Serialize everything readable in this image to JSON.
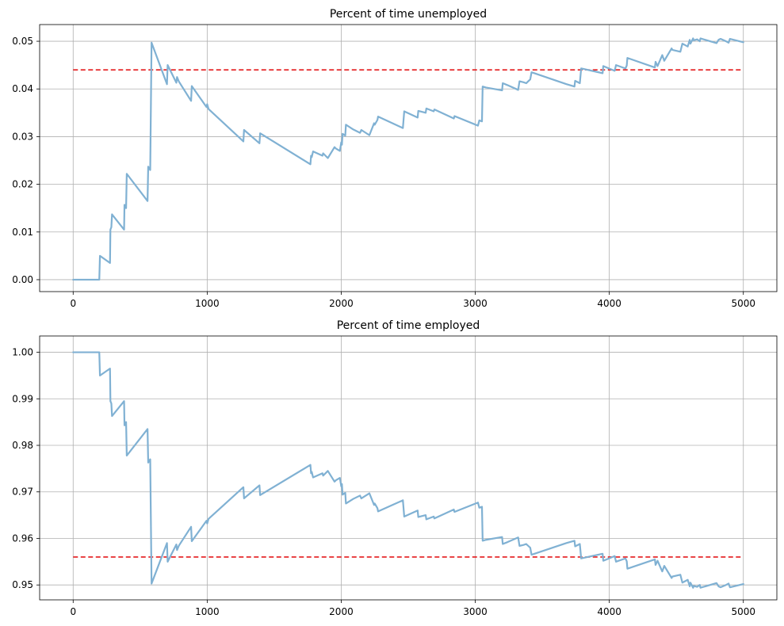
{
  "chart_data": [
    {
      "type": "line",
      "title": "Percent of time unemployed",
      "xlabel": "",
      "ylabel": "",
      "xlim": [
        -250,
        5250
      ],
      "ylim": [
        -0.0025,
        0.0535
      ],
      "xticks": [
        0,
        1000,
        2000,
        3000,
        4000,
        5000
      ],
      "xtick_labels": [
        "0",
        "1000",
        "2000",
        "3000",
        "4000",
        "5000"
      ],
      "yticks": [
        0.0,
        0.01,
        0.02,
        0.03,
        0.04,
        0.05
      ],
      "ytick_labels": [
        "0.00",
        "0.01",
        "0.02",
        "0.03",
        "0.04",
        "0.05"
      ],
      "grid": true,
      "reference_line": {
        "y": 0.044,
        "color": "#e41a1c",
        "style": "dashed"
      },
      "series_color": "#80b1d3",
      "series": [
        {
          "x": [
            0,
            195,
            200,
            275,
            278,
            285,
            290,
            380,
            383,
            395,
            400,
            555,
            560,
            575,
            585,
            700,
            705,
            770,
            775,
            785,
            790,
            880,
            885,
            995,
            1000,
            1010,
            1270,
            1275,
            1390,
            1395,
            1770,
            1775,
            1780,
            1790,
            1860,
            1865,
            1900,
            1950,
            1960,
            1990,
            2000,
            2005,
            2010,
            2030,
            2035,
            2090,
            2140,
            2150,
            2210,
            2245,
            2250,
            2270,
            2275,
            2460,
            2470,
            2570,
            2575,
            2630,
            2635,
            2690,
            2695,
            2840,
            2845,
            3020,
            3030,
            3050,
            3055,
            3080,
            3200,
            3205,
            3240,
            3320,
            3330,
            3360,
            3380,
            3395,
            3410,
            3420,
            3680,
            3740,
            3745,
            3780,
            3790,
            3950,
            3955,
            4040,
            4050,
            4120,
            4130,
            4135,
            4340,
            4345,
            4360,
            4395,
            4410,
            4465,
            4470,
            4530,
            4545,
            4585,
            4600,
            4605,
            4625,
            4630,
            4655,
            4675,
            4680,
            4800,
            4815,
            4830,
            4870,
            4890,
            4900,
            5000
          ],
          "y": [
            0.0,
            0.0,
            0.005,
            0.0035,
            0.0105,
            0.011,
            0.0137,
            0.0105,
            0.0157,
            0.015,
            0.0222,
            0.0165,
            0.0237,
            0.023,
            0.0497,
            0.041,
            0.045,
            0.0413,
            0.0425,
            0.0418,
            0.0415,
            0.0375,
            0.0406,
            0.0362,
            0.0368,
            0.0358,
            0.029,
            0.0314,
            0.0286,
            0.0307,
            0.0242,
            0.026,
            0.0257,
            0.0269,
            0.026,
            0.0265,
            0.0255,
            0.0278,
            0.0275,
            0.027,
            0.0288,
            0.0283,
            0.0306,
            0.0302,
            0.0325,
            0.0315,
            0.0308,
            0.0314,
            0.0303,
            0.0328,
            0.0325,
            0.0335,
            0.0342,
            0.0318,
            0.0353,
            0.034,
            0.0354,
            0.035,
            0.0359,
            0.0353,
            0.0357,
            0.0338,
            0.0343,
            0.0323,
            0.0334,
            0.0332,
            0.0405,
            0.0403,
            0.0397,
            0.0412,
            0.0408,
            0.0398,
            0.0416,
            0.0414,
            0.0412,
            0.0416,
            0.042,
            0.0435,
            0.041,
            0.0405,
            0.0417,
            0.0412,
            0.0443,
            0.0433,
            0.0448,
            0.0438,
            0.045,
            0.0443,
            0.0449,
            0.0465,
            0.0445,
            0.0457,
            0.0448,
            0.0471,
            0.0459,
            0.0485,
            0.0482,
            0.0478,
            0.0495,
            0.0489,
            0.0503,
            0.0495,
            0.0506,
            0.0502,
            0.0504,
            0.05,
            0.0506,
            0.0496,
            0.0503,
            0.0505,
            0.05,
            0.0497,
            0.0505,
            0.0498
          ]
        }
      ]
    },
    {
      "type": "line",
      "title": "Percent of time employed",
      "xlabel": "",
      "ylabel": "",
      "xlim": [
        -250,
        5250
      ],
      "ylim": [
        0.9468,
        1.0035
      ],
      "xticks": [
        0,
        1000,
        2000,
        3000,
        4000,
        5000
      ],
      "xtick_labels": [
        "0",
        "1000",
        "2000",
        "3000",
        "4000",
        "5000"
      ],
      "yticks": [
        0.95,
        0.96,
        0.97,
        0.98,
        0.99,
        1.0
      ],
      "ytick_labels": [
        "0.95",
        "0.96",
        "0.97",
        "0.98",
        "0.99",
        "1.00"
      ],
      "grid": true,
      "reference_line": {
        "y": 0.956,
        "color": "#e41a1c",
        "style": "dashed"
      },
      "series_color": "#80b1d3",
      "series": [
        {
          "x": [
            0,
            195,
            200,
            275,
            278,
            285,
            290,
            380,
            383,
            395,
            400,
            555,
            560,
            575,
            585,
            700,
            705,
            770,
            775,
            785,
            790,
            880,
            885,
            995,
            1000,
            1010,
            1270,
            1275,
            1390,
            1395,
            1770,
            1775,
            1780,
            1790,
            1860,
            1865,
            1900,
            1950,
            1960,
            1990,
            2000,
            2005,
            2010,
            2030,
            2035,
            2090,
            2140,
            2150,
            2210,
            2245,
            2250,
            2270,
            2275,
            2460,
            2470,
            2570,
            2575,
            2630,
            2635,
            2690,
            2695,
            2840,
            2845,
            3020,
            3030,
            3050,
            3055,
            3080,
            3200,
            3205,
            3240,
            3320,
            3330,
            3360,
            3380,
            3395,
            3410,
            3420,
            3680,
            3740,
            3745,
            3780,
            3790,
            3950,
            3955,
            4040,
            4050,
            4120,
            4130,
            4135,
            4340,
            4345,
            4360,
            4395,
            4410,
            4465,
            4470,
            4530,
            4545,
            4585,
            4600,
            4605,
            4625,
            4630,
            4655,
            4675,
            4680,
            4800,
            4815,
            4830,
            4870,
            4890,
            4900,
            5000
          ],
          "y": [
            1.0,
            1.0,
            0.995,
            0.9965,
            0.9895,
            0.989,
            0.9863,
            0.9895,
            0.9843,
            0.985,
            0.9778,
            0.9835,
            0.9763,
            0.977,
            0.9503,
            0.959,
            0.955,
            0.9587,
            0.9575,
            0.9582,
            0.9585,
            0.9625,
            0.9594,
            0.9638,
            0.9632,
            0.9642,
            0.971,
            0.9686,
            0.9714,
            0.9693,
            0.9758,
            0.974,
            0.9743,
            0.9731,
            0.974,
            0.9735,
            0.9745,
            0.9722,
            0.9725,
            0.973,
            0.9712,
            0.9717,
            0.9694,
            0.9698,
            0.9675,
            0.9685,
            0.9692,
            0.9686,
            0.9697,
            0.9672,
            0.9675,
            0.9665,
            0.9658,
            0.9682,
            0.9647,
            0.966,
            0.9646,
            0.965,
            0.9641,
            0.9647,
            0.9643,
            0.9662,
            0.9657,
            0.9677,
            0.9666,
            0.9668,
            0.9595,
            0.9597,
            0.9603,
            0.9588,
            0.9592,
            0.9602,
            0.9584,
            0.9586,
            0.9588,
            0.9584,
            0.958,
            0.9565,
            0.959,
            0.9595,
            0.9583,
            0.9588,
            0.9557,
            0.9567,
            0.9552,
            0.9562,
            0.955,
            0.9557,
            0.9551,
            0.9535,
            0.9555,
            0.9543,
            0.9552,
            0.9529,
            0.9541,
            0.9515,
            0.9518,
            0.9522,
            0.9505,
            0.9511,
            0.9497,
            0.9505,
            0.9494,
            0.9498,
            0.9496,
            0.95,
            0.9494,
            0.9504,
            0.9497,
            0.9495,
            0.95,
            0.9503,
            0.9495,
            0.9502
          ]
        }
      ]
    }
  ]
}
